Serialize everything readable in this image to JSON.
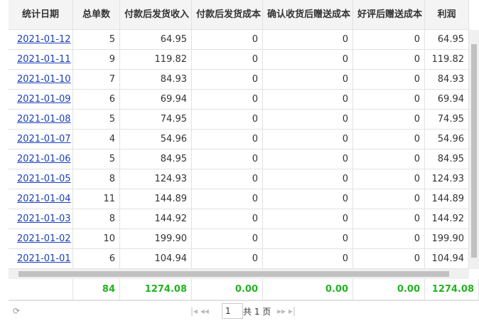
{
  "table": {
    "columns": [
      "统计日期",
      "总单数",
      "付款后发货收入",
      "付款后发货成本",
      "确认收货后赠送成本",
      "好评后赠送成本",
      "利润"
    ],
    "rows": [
      [
        "2021-01-12",
        "5",
        "64.95",
        "0",
        "0",
        "0",
        "64.95"
      ],
      [
        "2021-01-11",
        "9",
        "119.82",
        "0",
        "0",
        "0",
        "119.82"
      ],
      [
        "2021-01-10",
        "7",
        "84.93",
        "0",
        "0",
        "0",
        "84.93"
      ],
      [
        "2021-01-09",
        "6",
        "69.94",
        "0",
        "0",
        "0",
        "69.94"
      ],
      [
        "2021-01-08",
        "5",
        "74.95",
        "0",
        "0",
        "0",
        "74.95"
      ],
      [
        "2021-01-07",
        "4",
        "54.96",
        "0",
        "0",
        "0",
        "54.96"
      ],
      [
        "2021-01-06",
        "5",
        "84.95",
        "0",
        "0",
        "0",
        "84.95"
      ],
      [
        "2021-01-05",
        "8",
        "124.93",
        "0",
        "0",
        "0",
        "124.93"
      ],
      [
        "2021-01-04",
        "11",
        "144.89",
        "0",
        "0",
        "0",
        "144.89"
      ],
      [
        "2021-01-03",
        "8",
        "144.92",
        "0",
        "0",
        "0",
        "144.92"
      ],
      [
        "2021-01-02",
        "10",
        "199.90",
        "0",
        "0",
        "0",
        "199.90"
      ],
      [
        "2021-01-01",
        "6",
        "104.94",
        "0",
        "0",
        "0",
        "104.94"
      ]
    ],
    "totals": [
      "84",
      "1274.08",
      "0.00",
      "0.00",
      "0.00",
      "1274.08"
    ]
  },
  "pagination": {
    "page": "1",
    "total": "共 1 页"
  }
}
